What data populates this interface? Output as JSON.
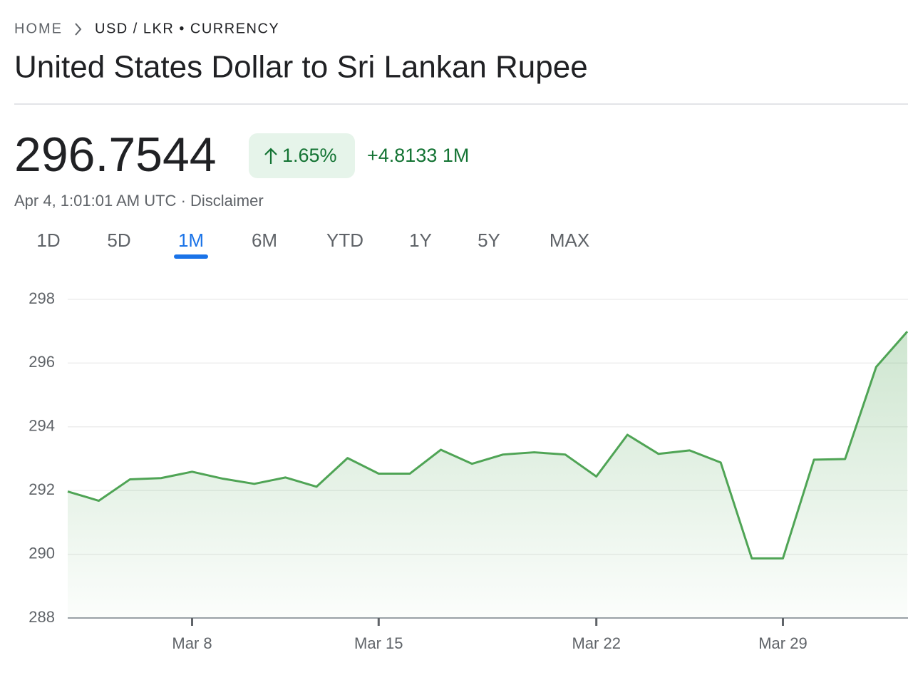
{
  "breadcrumb": {
    "home": "HOME",
    "current": "USD / LKR • CURRENCY"
  },
  "title": "United States Dollar to Sri Lankan Rupee",
  "price": "296.7544",
  "change_percent": "1.65%",
  "change": "+4.8133 1M",
  "timestamp": "Apr 4, 1:01:01 AM UTC",
  "timestamp_separator": "·",
  "disclaimer": "Disclaimer",
  "tabs": [
    "1D",
    "5D",
    "1M",
    "6M",
    "YTD",
    "1Y",
    "5Y",
    "MAX"
  ],
  "selected_tab": 2,
  "chart_data": {
    "type": "line",
    "categories": [
      null,
      null,
      null,
      null,
      "Mar 8",
      null,
      null,
      null,
      null,
      null,
      "Mar 15",
      null,
      null,
      null,
      null,
      null,
      null,
      "Mar 22",
      null,
      null,
      null,
      null,
      null,
      "Mar 29",
      null,
      null,
      null,
      null
    ],
    "values": [
      291.97,
      291.68,
      292.35,
      292.39,
      292.59,
      292.37,
      292.21,
      292.41,
      292.12,
      293.02,
      292.53,
      292.53,
      293.28,
      292.84,
      293.13,
      293.2,
      293.13,
      292.44,
      293.75,
      293.15,
      293.26,
      292.88,
      289.87,
      289.87,
      292.97,
      292.99,
      295.88,
      296.99
    ],
    "color": "#4fa455",
    "ylim": [
      288,
      298
    ],
    "yticks": [
      288,
      290,
      292,
      294,
      296,
      298
    ],
    "grid": true
  }
}
